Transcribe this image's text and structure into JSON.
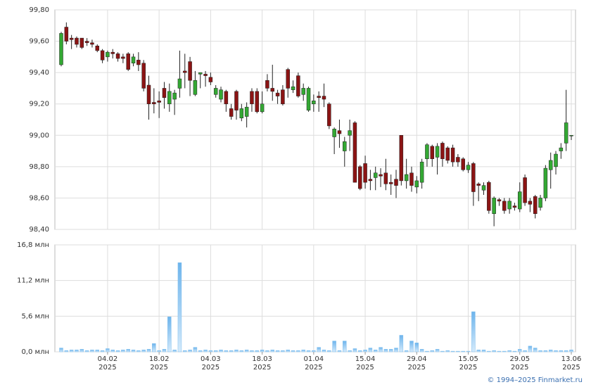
{
  "chart_data": [
    {
      "type": "candlestick",
      "up_color": "#33a833",
      "down_color": "#8b1414",
      "open": [
        99.45,
        99.69,
        99.62,
        99.62,
        99.62,
        99.6,
        99.59,
        99.57,
        99.54,
        99.5,
        99.53,
        99.52,
        99.5,
        99.52,
        99.46,
        99.48,
        99.46,
        99.32,
        99.21,
        99.22,
        99.3,
        99.2,
        99.23,
        99.3,
        99.41,
        99.47,
        99.26,
        99.39,
        99.39,
        99.37,
        99.26,
        99.23,
        99.28,
        99.17,
        99.28,
        99.11,
        99.12,
        99.28,
        99.28,
        99.15,
        99.35,
        99.3,
        99.27,
        99.29,
        99.42,
        99.29,
        99.38,
        99.26,
        99.16,
        99.2,
        99.25,
        99.25,
        99.2,
        98.99,
        99.03,
        98.9,
        99.0,
        99.08,
        98.8,
        98.82,
        98.72,
        98.73,
        98.75,
        98.76,
        98.7,
        98.72,
        99.0,
        98.71,
        98.76,
        98.67,
        98.7,
        98.85,
        98.93,
        98.86,
        98.95,
        98.92,
        98.92,
        98.86,
        98.85,
        98.78,
        98.82,
        98.69,
        98.65,
        98.7,
        98.5,
        98.59,
        98.58,
        98.53,
        98.55,
        98.53,
        98.73,
        98.58,
        98.61,
        98.54,
        98.6,
        98.78,
        98.8,
        98.9,
        98.95,
        99.0
      ],
      "high": [
        99.66,
        99.72,
        99.64,
        99.63,
        99.62,
        99.62,
        99.61,
        99.58,
        99.55,
        99.54,
        99.55,
        99.53,
        99.52,
        99.53,
        99.52,
        99.53,
        99.48,
        99.38,
        99.3,
        99.28,
        99.34,
        99.33,
        99.29,
        99.54,
        99.52,
        99.5,
        99.41,
        99.4,
        99.41,
        99.4,
        99.32,
        99.31,
        99.29,
        99.2,
        99.29,
        99.2,
        99.21,
        99.3,
        99.3,
        99.28,
        99.39,
        99.45,
        99.29,
        99.32,
        99.43,
        99.35,
        99.4,
        99.33,
        99.31,
        99.26,
        99.28,
        99.33,
        99.21,
        99.05,
        99.1,
        98.99,
        99.1,
        99.09,
        98.81,
        98.87,
        98.78,
        98.8,
        98.79,
        98.85,
        98.75,
        98.78,
        99.0,
        98.85,
        98.8,
        98.74,
        98.85,
        98.95,
        98.94,
        98.95,
        98.96,
        98.93,
        98.94,
        98.88,
        98.86,
        98.83,
        98.83,
        98.7,
        98.7,
        98.71,
        98.61,
        98.6,
        98.6,
        98.6,
        98.57,
        98.7,
        98.75,
        98.6,
        98.62,
        98.62,
        98.81,
        98.89,
        98.9,
        98.95,
        99.29,
        99.0
      ],
      "low": [
        99.44,
        99.58,
        99.55,
        99.56,
        99.55,
        99.57,
        99.56,
        99.53,
        99.46,
        99.47,
        99.49,
        99.47,
        99.46,
        99.41,
        99.44,
        99.41,
        99.28,
        99.1,
        99.14,
        99.11,
        99.17,
        99.15,
        99.13,
        99.24,
        99.3,
        99.25,
        99.25,
        99.3,
        99.31,
        99.32,
        99.24,
        99.21,
        99.15,
        99.1,
        99.1,
        99.09,
        99.05,
        99.15,
        99.14,
        99.14,
        99.28,
        99.22,
        99.2,
        99.19,
        99.24,
        99.27,
        99.24,
        99.22,
        99.15,
        99.15,
        99.15,
        99.18,
        99.04,
        98.88,
        98.92,
        98.8,
        98.9,
        98.7,
        98.65,
        98.66,
        98.65,
        98.65,
        98.67,
        98.65,
        98.62,
        98.6,
        98.68,
        98.66,
        98.64,
        98.63,
        98.66,
        98.8,
        98.8,
        98.75,
        98.8,
        98.82,
        98.8,
        98.8,
        98.77,
        98.76,
        98.55,
        98.58,
        98.62,
        98.5,
        98.42,
        98.55,
        98.5,
        98.5,
        98.52,
        98.51,
        98.55,
        98.51,
        98.47,
        98.52,
        98.58,
        98.66,
        98.75,
        98.85,
        98.9,
        98.97
      ],
      "close": [
        99.65,
        99.6,
        99.61,
        99.58,
        99.56,
        99.59,
        99.58,
        99.54,
        99.48,
        99.53,
        99.52,
        99.49,
        99.49,
        99.42,
        99.5,
        99.45,
        99.3,
        99.2,
        99.2,
        99.21,
        99.24,
        99.28,
        99.27,
        99.36,
        99.4,
        99.35,
        99.35,
        99.4,
        99.38,
        99.34,
        99.3,
        99.29,
        99.2,
        99.12,
        99.16,
        99.17,
        99.18,
        99.2,
        99.15,
        99.2,
        99.3,
        99.28,
        99.25,
        99.2,
        99.3,
        99.31,
        99.25,
        99.3,
        99.3,
        99.22,
        99.24,
        99.23,
        99.06,
        99.04,
        99.01,
        98.96,
        99.03,
        98.7,
        98.66,
        98.7,
        98.71,
        98.76,
        98.74,
        98.69,
        98.69,
        98.68,
        98.71,
        98.75,
        98.68,
        98.71,
        98.83,
        98.94,
        98.85,
        98.93,
        98.85,
        98.84,
        98.83,
        98.83,
        98.78,
        98.81,
        98.64,
        98.68,
        98.68,
        98.52,
        98.6,
        98.58,
        98.52,
        98.58,
        98.54,
        98.64,
        98.57,
        98.56,
        98.5,
        98.6,
        98.79,
        98.84,
        98.88,
        98.92,
        99.08,
        99.0
      ],
      "ylim": [
        98.4,
        99.8
      ],
      "yticks": [
        {
          "value": 98.4,
          "label": "98,40"
        },
        {
          "value": 98.6,
          "label": "98,60"
        },
        {
          "value": 98.8,
          "label": "98,80"
        },
        {
          "value": 99.0,
          "label": "99,00"
        },
        {
          "value": 99.2,
          "label": "99,20"
        },
        {
          "value": 99.4,
          "label": "99,40"
        },
        {
          "value": 99.6,
          "label": "99,60"
        },
        {
          "value": 99.8,
          "label": "99,80"
        }
      ],
      "grid": true
    },
    {
      "type": "bar",
      "color": "#7fbfee",
      "categories": [
        null,
        null,
        null,
        null,
        null,
        null,
        null,
        null,
        null,
        "04.02 2025",
        null,
        null,
        null,
        null,
        null,
        null,
        null,
        null,
        null,
        "18.02 2025",
        null,
        null,
        null,
        null,
        null,
        null,
        null,
        null,
        null,
        "04.03 2025",
        null,
        null,
        null,
        null,
        null,
        null,
        null,
        null,
        null,
        "18.03 2025",
        null,
        null,
        null,
        null,
        null,
        null,
        null,
        null,
        null,
        "01.04 2025",
        null,
        null,
        null,
        null,
        null,
        null,
        null,
        null,
        null,
        "15.04 2025",
        null,
        null,
        null,
        null,
        null,
        null,
        null,
        null,
        null,
        "29.04 2025",
        null,
        null,
        null,
        null,
        null,
        null,
        null,
        null,
        null,
        "15.05 2025",
        null,
        null,
        null,
        null,
        null,
        null,
        null,
        null,
        null,
        "29.05 2025",
        null,
        null,
        null,
        null,
        null,
        null,
        null,
        null,
        null,
        "13.06 2025"
      ],
      "values": [
        0.6,
        0.2,
        0.3,
        0.3,
        0.4,
        0.2,
        0.3,
        0.3,
        0.2,
        0.5,
        0.3,
        0.2,
        0.3,
        0.4,
        0.3,
        0.2,
        0.3,
        0.4,
        1.3,
        0.2,
        0.4,
        5.5,
        0.3,
        14.0,
        0.2,
        0.3,
        0.7,
        0.2,
        0.3,
        0.2,
        0.2,
        0.3,
        0.2,
        0.2,
        0.3,
        0.2,
        0.3,
        0.2,
        0.2,
        0.3,
        0.2,
        0.3,
        0.2,
        0.2,
        0.3,
        0.2,
        0.2,
        0.3,
        0.2,
        0.2,
        0.7,
        0.3,
        0.2,
        1.7,
        0.2,
        1.7,
        0.2,
        0.5,
        0.2,
        0.3,
        0.6,
        0.3,
        0.7,
        0.4,
        0.4,
        0.6,
        2.6,
        0.2,
        1.7,
        1.4,
        0.4,
        0.1,
        0.2,
        0.4,
        0.1,
        0.2,
        0.1,
        0.1,
        0.1,
        0.1,
        6.3,
        0.3,
        0.3,
        0.1,
        0.2,
        0.1,
        0.1,
        0.2,
        0.1,
        0.4,
        0.2,
        0.9,
        0.6,
        0.2,
        0.2,
        0.3,
        0.2,
        0.2,
        0.2,
        0.3
      ],
      "ylim": [
        0,
        16.8
      ],
      "yticks": [
        {
          "value": 0,
          "label": "0,0 млн"
        },
        {
          "value": 5.6,
          "label": "5,6 млн"
        },
        {
          "value": 11.2,
          "label": "11,2 млн"
        },
        {
          "value": 16.8,
          "label": "16,8 млн"
        }
      ],
      "grid": true
    }
  ],
  "footer": "© 1994–2025 Finmarket.ru"
}
